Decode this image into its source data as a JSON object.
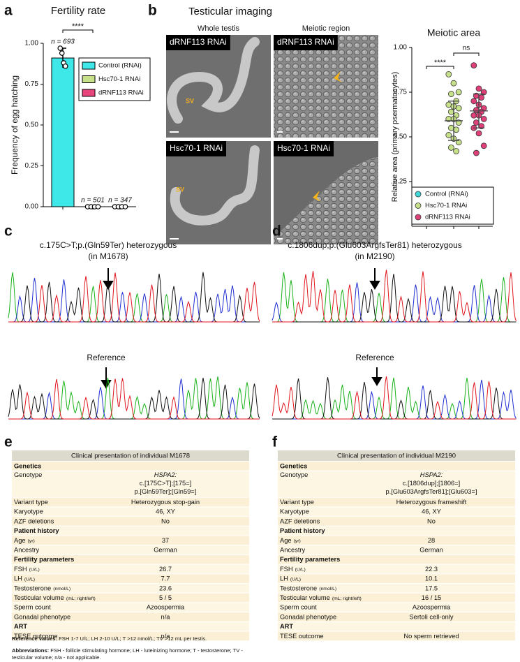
{
  "panel_letters": [
    "a",
    "b",
    "c",
    "d",
    "e",
    "f"
  ],
  "chart_data": [
    {
      "type": "bar",
      "title": "Fertility rate",
      "y_label": "Frequency of egg hatching",
      "categories": [
        "Control (RNAi)",
        "Hsc70-1 RNAi",
        "dRNF113 RNAi"
      ],
      "colors": [
        "#3ee8e8",
        "#c7e18a",
        "#e8457c"
      ],
      "values": [
        0.91,
        0,
        0
      ],
      "errors": [
        0.06,
        0,
        0
      ],
      "points": [
        [
          0.97,
          0.94,
          0.88,
          0.86
        ],
        [
          0,
          0,
          0,
          0
        ],
        [
          0,
          0,
          0,
          0
        ]
      ],
      "n_labels": [
        "n = 693",
        "n = 501",
        "n = 347"
      ],
      "significance": "****",
      "ylim": [
        0,
        1
      ],
      "yticks": [
        {
          "value": 0,
          "label": "0.00"
        },
        {
          "value": 0.25,
          "label": "0.25"
        },
        {
          "value": 0.5,
          "label": "0.50"
        },
        {
          "value": 0.75,
          "label": "0.75"
        },
        {
          "value": 1,
          "label": "1.00"
        }
      ]
    },
    {
      "type": "scatter",
      "title": "Meiotic area",
      "y_label": "Relative area (primary psermatocytes)",
      "categories": [
        "Control (RNAi)",
        "Hsc70-1 RNAi",
        "dRNF113 RNAi"
      ],
      "colors": [
        "#3dd8d8",
        "#c7e18a",
        "#e0407a"
      ],
      "points": [
        [
          0.2,
          0.18,
          0.16,
          0.15,
          0.15,
          0.14,
          0.14,
          0.13,
          0.13,
          0.12,
          0.12,
          0.12,
          0.11,
          0.11,
          0.1,
          0.1,
          0.09,
          0.09,
          0.08,
          0.07
        ],
        [
          0.85,
          0.8,
          0.75,
          0.74,
          0.7,
          0.68,
          0.67,
          0.66,
          0.64,
          0.62,
          0.6,
          0.6,
          0.58,
          0.55,
          0.54,
          0.51,
          0.49,
          0.47,
          0.44,
          0.42
        ],
        [
          0.9,
          0.77,
          0.75,
          0.73,
          0.72,
          0.7,
          0.68,
          0.66,
          0.65,
          0.64,
          0.62,
          0.62,
          0.6,
          0.58,
          0.56,
          0.55,
          0.52,
          0.45,
          0.41
        ]
      ],
      "means": [
        0.13,
        0.59,
        0.645
      ],
      "sds": [
        0.03,
        0.11,
        0.095
      ],
      "significance": [
        "****",
        "ns"
      ],
      "ylim": [
        0,
        1
      ],
      "yticks": [
        {
          "value": 0.25,
          "label": "0.25"
        },
        {
          "value": 0.5,
          "label": "0.50"
        },
        {
          "value": 0.75,
          "label": "0.75"
        },
        {
          "value": 1,
          "label": "1.00"
        }
      ]
    }
  ],
  "imaging": {
    "title": "Testicular imaging",
    "columns": [
      "Whole testis",
      "Meiotic region"
    ],
    "rows": [
      {
        "labels": [
          "dRNF113 RNAi",
          "dRNF113 RNAi"
        ],
        "sv": "SV"
      },
      {
        "labels": [
          "Hsc70-1 RNAi",
          "Hsc70-1 RNAi"
        ],
        "sv": "SV"
      }
    ]
  },
  "sequencing": [
    {
      "title": "c.175C>T;p.(Gln59Ter) heterozygous",
      "subtitle": "(in M1678)",
      "reference": "Reference"
    },
    {
      "title": "c.1806dup;p.(Glu603ArgfsTer81) heterozygous",
      "subtitle": "(in M2190)",
      "reference": "Reference"
    }
  ],
  "tables": [
    {
      "title": "Clinical presentation of individual M1678",
      "rows": [
        {
          "label": "Genetics",
          "section": true
        },
        {
          "label": "Genotype",
          "value": [
            "HSPA2:",
            "c.[175C>T];[175=]",
            "p.[Gln59Ter];[Gln59=]"
          ]
        },
        {
          "label": "Variant type",
          "value": "Heterozygous stop-gain"
        },
        {
          "label": "Karyotype",
          "value": "46, XY"
        },
        {
          "label": "AZF deletions",
          "value": "No"
        },
        {
          "label": "Patient history",
          "section": true
        },
        {
          "label": "Age",
          "unit": "(yr)",
          "value": "37"
        },
        {
          "label": "Ancestry",
          "value": "German"
        },
        {
          "label": "Fertility parameters",
          "section": true
        },
        {
          "label": "FSH",
          "unit": "(U/L)",
          "value": "26.7"
        },
        {
          "label": "LH",
          "unit": "(U/L)",
          "value": "7.7"
        },
        {
          "label": "Testosterone",
          "unit": "(nmol/L)",
          "value": "23.6"
        },
        {
          "label": "Testicular volume",
          "unit": "(mL; right/left)",
          "value": "5 / 5"
        },
        {
          "label": "Sperm count",
          "value": "Azoospermia"
        },
        {
          "label": "Gonadal phenotype",
          "value": "n/a"
        },
        {
          "label": "ART",
          "section": true
        },
        {
          "label": "TESE outcome",
          "value": "n/a"
        }
      ]
    },
    {
      "title": "Clinical presentation of individual M2190",
      "rows": [
        {
          "label": "Genetics",
          "section": true
        },
        {
          "label": "Genotype",
          "value": [
            "HSPA2:",
            "c.[1806dup];[1806=]",
            "p.[Glu603ArgfsTer81];[Glu603=]"
          ]
        },
        {
          "label": "Variant type",
          "value": "Heterozygous frameshift"
        },
        {
          "label": "Karyotype",
          "value": "46, XY"
        },
        {
          "label": "AZF deletions",
          "value": "No"
        },
        {
          "label": "Patient history",
          "section": true
        },
        {
          "label": "Age",
          "unit": "(yr)",
          "value": "28"
        },
        {
          "label": "Ancestry",
          "value": "German"
        },
        {
          "label": "Fertility parameters",
          "section": true
        },
        {
          "label": "FSH",
          "unit": "(U/L)",
          "value": "22.3"
        },
        {
          "label": "LH",
          "unit": "(U/L)",
          "value": "10.1"
        },
        {
          "label": "Testosterone",
          "unit": "(nmol/L)",
          "value": "17.5"
        },
        {
          "label": "Testicular volume",
          "unit": "(mL; right/left)",
          "value": "16 / 15"
        },
        {
          "label": "Sperm count",
          "value": "Azoospermia"
        },
        {
          "label": "Gonadal phenotype",
          "value": "Sertoli cell-only"
        },
        {
          "label": "ART",
          "section": true
        },
        {
          "label": "TESE outcome",
          "value": "No sperm retrieved"
        }
      ]
    }
  ],
  "footnotes": [
    {
      "label": "Reference values:",
      "text": "FSH 1-7 U/L; LH 2-10 U/L; T >12 nmol/L; TV >12 mL per testis."
    },
    {
      "label": "Abbreviations:",
      "text": "FSH - follicle stimulating hormone; LH - luteinizing hormone; T - testosterone; TV - testicular volume; n/a - not applicable."
    }
  ]
}
